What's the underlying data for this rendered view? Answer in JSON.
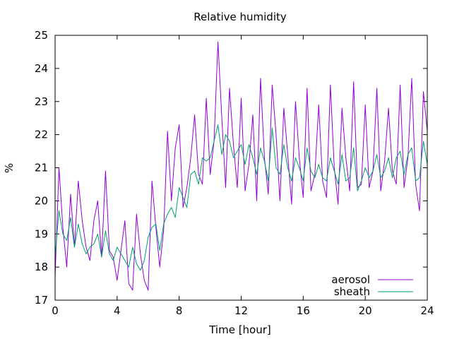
{
  "chart_data": {
    "type": "line",
    "title": "Relative humidity",
    "xlabel": "Time [hour]",
    "ylabel": "%",
    "xlim": [
      0,
      24
    ],
    "ylim": [
      17,
      25
    ],
    "x_ticks": [
      0,
      4,
      8,
      12,
      16,
      20,
      24
    ],
    "y_ticks": [
      17,
      18,
      19,
      20,
      21,
      22,
      23,
      24,
      25
    ],
    "grid": false,
    "legend_position": "bottom-right",
    "series": [
      {
        "name": "aerosol",
        "color": "#9400d3",
        "x": [
          0,
          0.25,
          0.5,
          0.75,
          1,
          1.25,
          1.5,
          1.75,
          2,
          2.25,
          2.5,
          2.75,
          3,
          3.25,
          3.5,
          3.75,
          4,
          4.25,
          4.5,
          4.75,
          5,
          5.25,
          5.5,
          5.75,
          6,
          6.25,
          6.5,
          6.75,
          7,
          7.25,
          7.5,
          7.75,
          8,
          8.25,
          8.5,
          8.75,
          9,
          9.25,
          9.5,
          9.75,
          10,
          10.25,
          10.5,
          10.75,
          11,
          11.25,
          11.5,
          11.75,
          12,
          12.25,
          12.5,
          12.75,
          13,
          13.25,
          13.5,
          13.75,
          14,
          14.25,
          14.5,
          14.75,
          15,
          15.25,
          15.5,
          15.75,
          16,
          16.25,
          16.5,
          16.75,
          17,
          17.25,
          17.5,
          17.75,
          18,
          18.25,
          18.5,
          18.75,
          19,
          19.25,
          19.5,
          19.75,
          20,
          20.25,
          20.5,
          20.75,
          21,
          21.25,
          21.5,
          21.75,
          22,
          22.25,
          22.5,
          22.75,
          23,
          23.25,
          23.5,
          23.75,
          24
        ],
        "y": [
          17.7,
          21.0,
          19.2,
          18.0,
          20.2,
          18.6,
          20.6,
          19.4,
          18.6,
          18.2,
          19.4,
          20.0,
          18.3,
          20.9,
          18.5,
          18.3,
          17.6,
          18.5,
          19.4,
          17.5,
          17.3,
          19.6,
          18.4,
          17.6,
          17.3,
          20.6,
          19.2,
          18.0,
          19.1,
          22.1,
          20.0,
          21.6,
          22.3,
          19.8,
          20.4,
          21.3,
          22.6,
          20.8,
          20.5,
          23.1,
          20.8,
          21.8,
          24.8,
          22.5,
          20.4,
          23.4,
          21.7,
          20.4,
          23.1,
          20.3,
          21.1,
          22.6,
          20.0,
          23.7,
          21.3,
          20.2,
          23.5,
          22.0,
          20.0,
          22.8,
          21.4,
          19.9,
          23.0,
          21.3,
          20.1,
          23.4,
          20.3,
          20.8,
          22.9,
          20.6,
          20.1,
          23.5,
          21.0,
          19.9,
          22.8,
          21.3,
          20.3,
          23.6,
          20.4,
          20.5,
          22.9,
          20.4,
          20.9,
          23.4,
          20.3,
          21.2,
          22.8,
          20.9,
          20.5,
          23.5,
          20.4,
          21.3,
          23.7,
          20.5,
          19.7,
          23.3,
          22.1
        ]
      },
      {
        "name": "sheath",
        "color": "#009e73",
        "x": [
          0,
          0.25,
          0.5,
          0.75,
          1,
          1.25,
          1.5,
          1.75,
          2,
          2.25,
          2.5,
          2.75,
          3,
          3.25,
          3.5,
          3.75,
          4,
          4.25,
          4.5,
          4.75,
          5,
          5.25,
          5.5,
          5.75,
          6,
          6.25,
          6.5,
          6.75,
          7,
          7.25,
          7.5,
          7.75,
          8,
          8.25,
          8.5,
          8.75,
          9,
          9.25,
          9.5,
          9.75,
          10,
          10.25,
          10.5,
          10.75,
          11,
          11.25,
          11.5,
          11.75,
          12,
          12.25,
          12.5,
          12.75,
          13,
          13.25,
          13.5,
          13.75,
          14,
          14.25,
          14.5,
          14.75,
          15,
          15.25,
          15.5,
          15.75,
          16,
          16.25,
          16.5,
          16.75,
          17,
          17.25,
          17.5,
          17.75,
          18,
          18.25,
          18.5,
          18.75,
          19,
          19.25,
          19.5,
          19.75,
          20,
          20.25,
          20.5,
          20.75,
          21,
          21.25,
          21.5,
          21.75,
          22,
          22.25,
          22.5,
          22.75,
          23,
          23.25,
          23.5,
          23.75,
          24
        ],
        "y": [
          18.3,
          19.7,
          19.0,
          18.8,
          19.5,
          18.6,
          19.3,
          18.7,
          18.4,
          18.6,
          18.7,
          19.0,
          18.3,
          19.1,
          18.4,
          18.2,
          18.6,
          18.4,
          18.2,
          18.0,
          18.6,
          18.1,
          17.9,
          18.2,
          18.9,
          19.2,
          19.3,
          18.5,
          19.3,
          19.6,
          19.8,
          19.5,
          20.4,
          20.1,
          19.8,
          20.8,
          20.9,
          20.5,
          21.3,
          21.2,
          21.3,
          21.8,
          22.3,
          21.4,
          22.0,
          21.8,
          21.3,
          21.5,
          21.7,
          21.1,
          21.7,
          21.3,
          20.8,
          21.6,
          21.2,
          20.6,
          22.2,
          21.0,
          20.8,
          21.7,
          21.0,
          20.6,
          21.3,
          21.0,
          20.6,
          21.6,
          20.9,
          20.7,
          21.1,
          20.7,
          20.6,
          21.3,
          20.9,
          20.5,
          21.4,
          20.6,
          20.7,
          21.6,
          20.3,
          20.6,
          21.0,
          20.7,
          20.9,
          21.4,
          20.7,
          20.9,
          21.3,
          20.7,
          21.3,
          21.5,
          20.8,
          21.4,
          21.6,
          20.6,
          20.7,
          21.8,
          21.1
        ]
      }
    ]
  }
}
